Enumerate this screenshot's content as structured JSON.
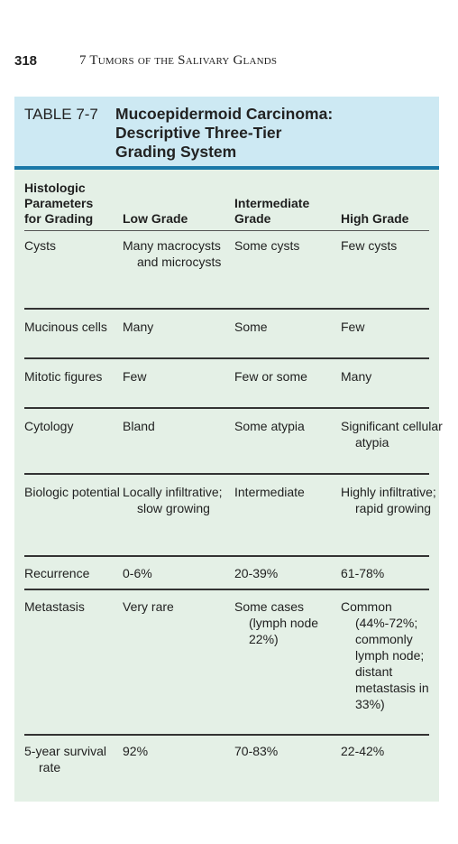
{
  "page": {
    "number": "318",
    "chapter": "7  Tumors of the Salivary Glands"
  },
  "table": {
    "label": "TABLE 7-7",
    "title_lines": [
      "Mucoepidermoid Carcinoma:",
      "Descriptive Three-Tier",
      "Grading System"
    ],
    "headers": {
      "col1": [
        "Histologic",
        "Parameters",
        "for Grading"
      ],
      "col2": "Low Grade",
      "col3": [
        "Intermediate",
        "Grade"
      ],
      "col4": "High Grade"
    },
    "rows": [
      {
        "param": "Cysts",
        "low": "Many macrocysts and microcysts",
        "intermediate": "Some cysts",
        "high": "Few cysts"
      },
      {
        "param": "Mucinous cells",
        "low": "Many",
        "intermediate": "Some",
        "high": "Few"
      },
      {
        "param": "Mitotic figures",
        "low": "Few",
        "intermediate": "Few or some",
        "high": "Many"
      },
      {
        "param": "Cytology",
        "low": "Bland",
        "intermediate": "Some atypia",
        "high": "Significant cellular atypia"
      },
      {
        "param": "Biologic potential",
        "low": "Locally infiltrative; slow growing",
        "intermediate": "Intermediate",
        "high": "Highly infiltrative; rapid growing"
      },
      {
        "param": "Recurrence",
        "low": "0-6%",
        "intermediate": "20-39%",
        "high": "61-78%"
      },
      {
        "param": "Metastasis",
        "low": "Very rare",
        "intermediate": "Some cases (lymph node 22%)",
        "high": "Common (44%-72%; commonly lymph node; distant metastasis in 33%)"
      },
      {
        "param": "5-year survival rate",
        "low": "92%",
        "intermediate": "70-83%",
        "high": "22-42%"
      }
    ]
  }
}
